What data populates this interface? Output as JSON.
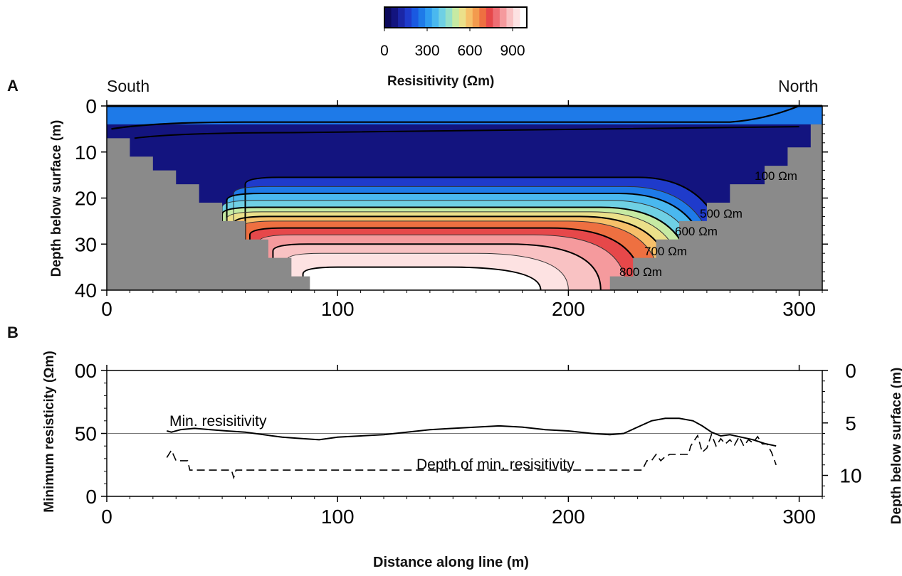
{
  "chart_data": [
    {
      "type": "heatmap",
      "panel": "A",
      "xlim": [
        0,
        310
      ],
      "ylim": [
        40,
        0
      ],
      "ylabel": "Depth below surface (m)",
      "x_ticks": [
        "0",
        "100",
        "200",
        "300"
      ],
      "y_ticks": [
        "0",
        "10",
        "20",
        "30",
        "40"
      ],
      "left_label": "South",
      "right_label": "North",
      "colorbar": {
        "title": "Resisitivity (Ωm)",
        "range": [
          0,
          1000
        ],
        "ticks": [
          "0",
          "300",
          "600",
          "900"
        ],
        "colors": [
          "#0c0a5c",
          "#13147f",
          "#1b26a6",
          "#1f3bcb",
          "#1a59e1",
          "#1e7ae8",
          "#2e9bf0",
          "#4ab8ef",
          "#6fd0e4",
          "#96e0c8",
          "#c6eaa3",
          "#ebe08a",
          "#f6c06a",
          "#f39b4e",
          "#ee7041",
          "#e6484a",
          "#ee6e74",
          "#f59a9d",
          "#f9c2c3",
          "#fde2e2",
          "#ffffff"
        ]
      },
      "contour_labels": [
        "100 Ωm",
        "500 Ωm",
        "600 Ωm",
        "700 Ωm",
        "800 Ωm"
      ],
      "no_data_color": "#8a8a8a"
    },
    {
      "type": "line",
      "panel": "B",
      "xlabel": "Distance along line (m)",
      "ylabel": "Minimum resisticity (Ωm)",
      "y2label": "Depth below surface (m)",
      "xlim": [
        0,
        310
      ],
      "ylim": [
        0,
        100
      ],
      "y2lim": [
        12,
        0
      ],
      "x_ticks": [
        "0",
        "100",
        "200",
        "300"
      ],
      "y_ticks": [
        "0",
        "50",
        "00"
      ],
      "y2_ticks": [
        "0",
        "5",
        "10"
      ],
      "reference_line_y": 50,
      "series": [
        {
          "name": "Min. resisitivity",
          "style": "solid",
          "x": [
            26,
            28,
            32,
            38,
            45,
            52,
            60,
            68,
            76,
            84,
            92,
            100,
            110,
            120,
            130,
            140,
            150,
            160,
            170,
            180,
            190,
            200,
            210,
            218,
            224,
            230,
            236,
            242,
            248,
            254,
            258,
            262,
            266,
            270,
            275,
            280,
            285,
            290
          ],
          "y": [
            52,
            51,
            53,
            54,
            53,
            52,
            51,
            49,
            47,
            46,
            45,
            47,
            48,
            49,
            51,
            53,
            54,
            55,
            56,
            55,
            53,
            52,
            50,
            49,
            50,
            55,
            60,
            62,
            62,
            60,
            56,
            51,
            48,
            49,
            47,
            45,
            42,
            40
          ]
        },
        {
          "name": "Depth of min. resisitivity",
          "style": "dashed",
          "axis": "right",
          "x": [
            26,
            28,
            30,
            32,
            35,
            36,
            50,
            54,
            55,
            56,
            100,
            150,
            200,
            232,
            234,
            236,
            238,
            240,
            242,
            244,
            248,
            252,
            253,
            256,
            258,
            260,
            262,
            264,
            266,
            268,
            270,
            272,
            274,
            276,
            278,
            280,
            282,
            284,
            286,
            288,
            290
          ],
          "y": [
            8.3,
            7.6,
            8.6,
            8.6,
            8.6,
            9.5,
            9.5,
            9.5,
            10.2,
            9.5,
            9.5,
            9.5,
            9.5,
            9.5,
            8.6,
            8.6,
            8.0,
            8.6,
            8.2,
            8.0,
            8.0,
            8.0,
            7.2,
            6.2,
            7.8,
            7.4,
            6.1,
            7.2,
            6.5,
            7.0,
            6.6,
            7.1,
            6.3,
            7.2,
            6.6,
            6.9,
            6.3,
            7.0,
            7.0,
            7.8,
            9.0
          ]
        }
      ]
    }
  ]
}
